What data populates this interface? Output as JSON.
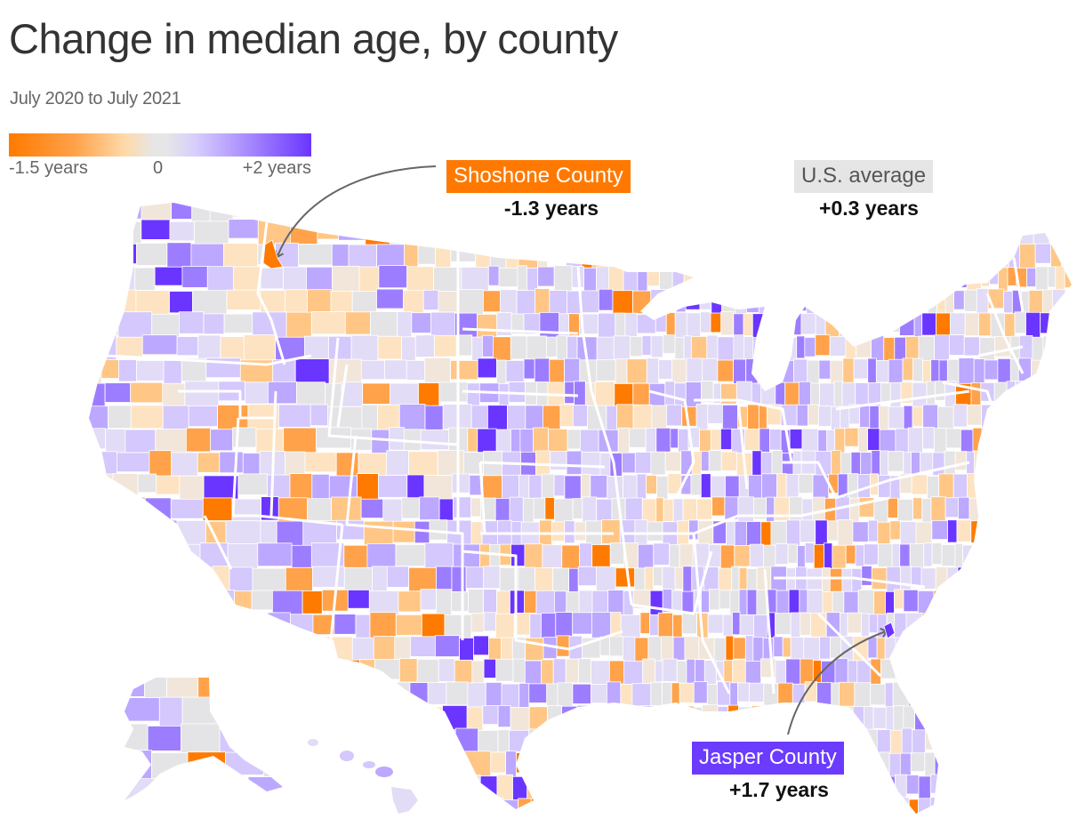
{
  "header": {
    "title": "Change in median age, by county",
    "subtitle": "July 2020 to July 2021"
  },
  "legend": {
    "min_label": "-1.5 years",
    "mid_label": "0",
    "max_label": "+2 years",
    "min_value": -1.5,
    "mid_value": 0,
    "max_value": 2,
    "color_min": "#ff7a00",
    "color_mid": "#e6e6e6",
    "color_max": "#6a35ff"
  },
  "annotations": {
    "shoshone": {
      "label": "Shoshone County",
      "value": "-1.3 years",
      "color": "#ff7900"
    },
    "us_average": {
      "label": "U.S. average",
      "value": "+0.3 years",
      "color": "#e5e5e5"
    },
    "jasper": {
      "label": "Jasper County",
      "value": "+1.7 years",
      "color": "#6b3bff"
    }
  },
  "palette": {
    "orange_dark": "#ff7a00",
    "orange": "#ffa24a",
    "orange_light": "#ffc685",
    "peach": "#fde3c2",
    "beige": "#f1e6d9",
    "gray": "#e4e4e6",
    "lavender_light": "#e2dcf7",
    "lavender": "#d4c8fd",
    "purple_light": "#bca8ff",
    "purple": "#9d7dff",
    "purple_dark": "#6a35ff"
  }
}
